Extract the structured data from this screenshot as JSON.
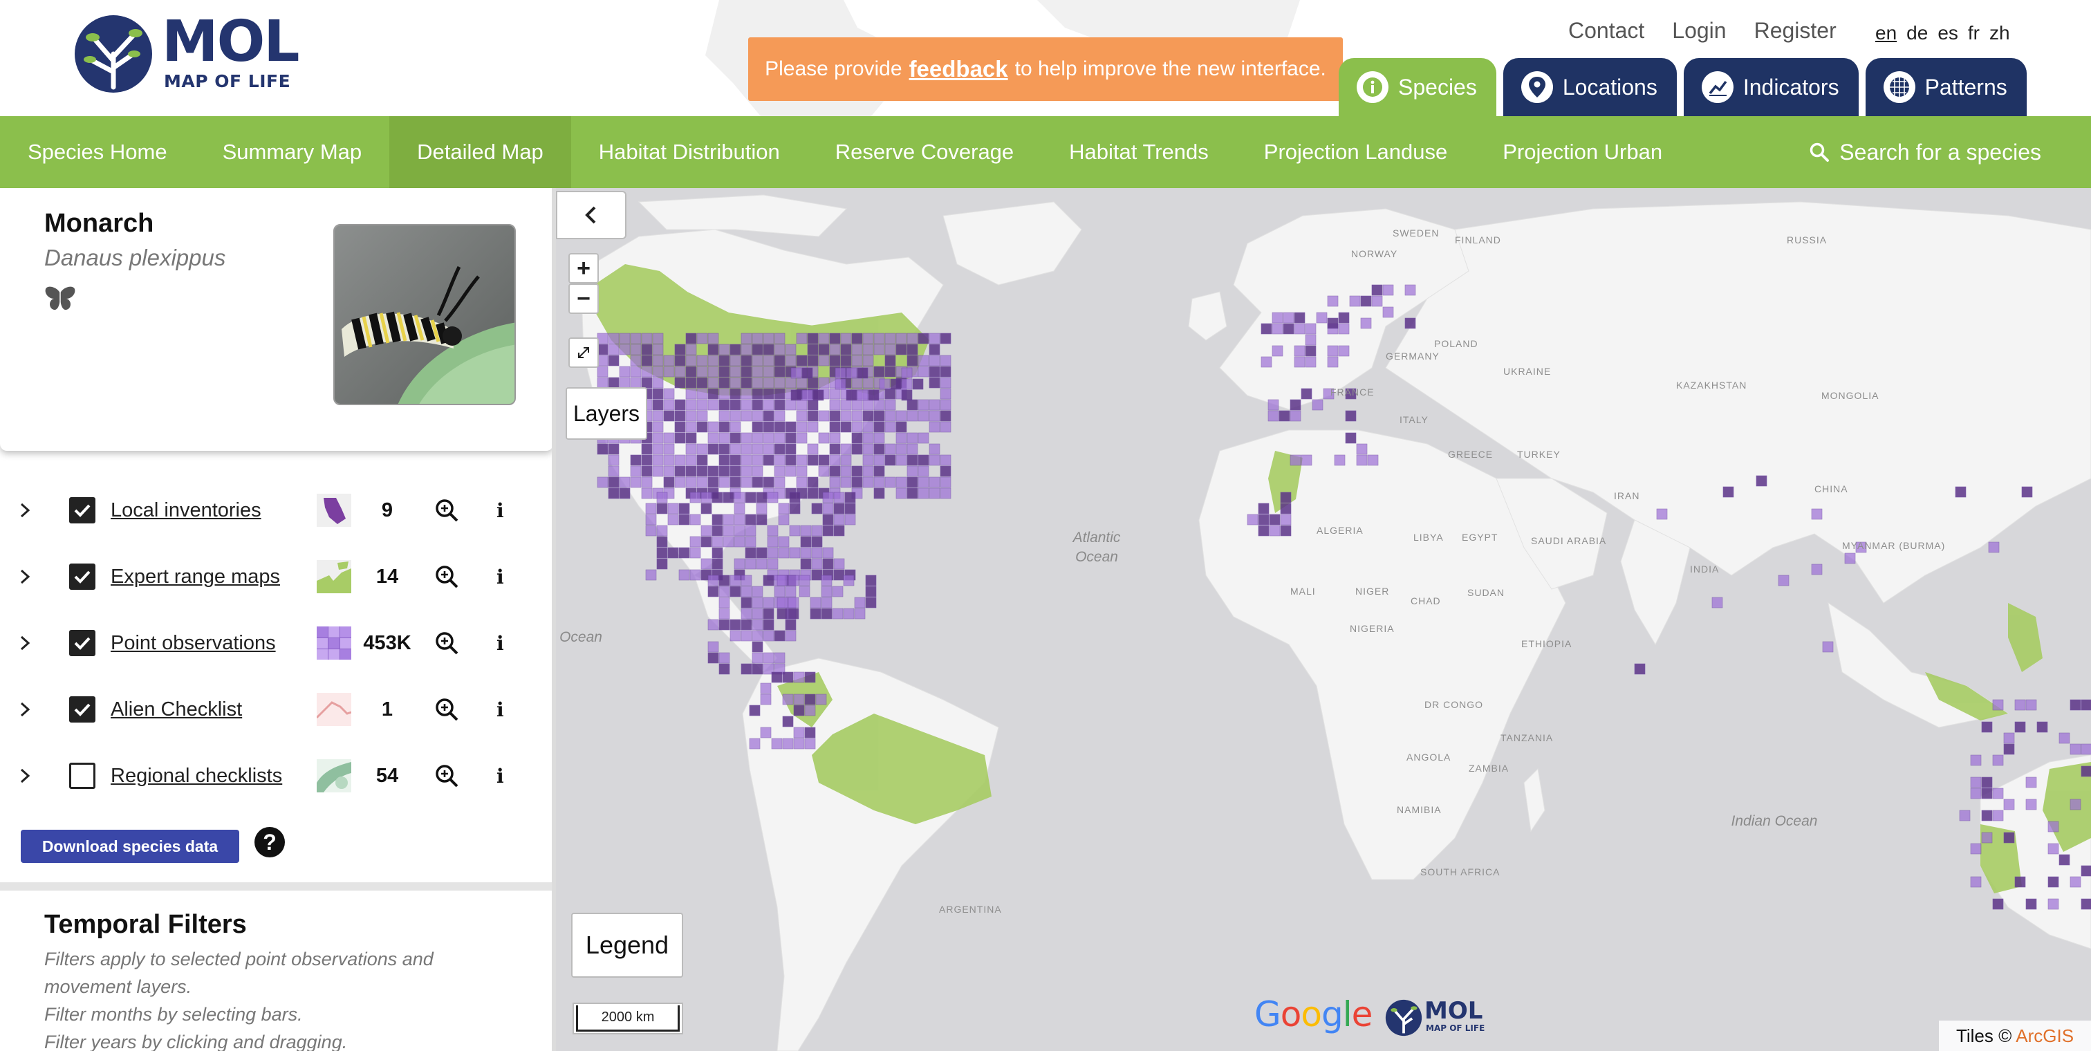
{
  "logo": {
    "title": "MOL",
    "subtitle": "MAP OF LIFE"
  },
  "feedback": {
    "prefix": "Please provide",
    "link": "feedback",
    "suffix": "to help improve the new interface."
  },
  "top_links": [
    "Contact",
    "Login",
    "Register"
  ],
  "languages": {
    "items": [
      "en",
      "de",
      "es",
      "fr",
      "zh"
    ],
    "selected": "en"
  },
  "main_tabs": [
    {
      "label": "Species",
      "icon": "info-icon",
      "active": true
    },
    {
      "label": "Locations",
      "icon": "location-pin-icon",
      "active": false
    },
    {
      "label": "Indicators",
      "icon": "trend-chart-icon",
      "active": false
    },
    {
      "label": "Patterns",
      "icon": "grid-globe-icon",
      "active": false
    }
  ],
  "nav": {
    "items": [
      "Species Home",
      "Summary Map",
      "Detailed Map",
      "Habitat Distribution",
      "Reserve Coverage",
      "Habitat Trends",
      "Projection Landuse",
      "Projection Urban"
    ],
    "active": "Detailed Map",
    "search_label": "Search for a species"
  },
  "species": {
    "common_name": "Monarch",
    "scientific_name": "Danaus plexippus",
    "group_icon": "butterfly-icon"
  },
  "layers": [
    {
      "label": "Local inventories",
      "count": "9",
      "checked": true,
      "color": "#7b3fa0"
    },
    {
      "label": "Expert range maps",
      "count": "14",
      "checked": true,
      "color": "#a8cc66"
    },
    {
      "label": "Point observations",
      "count": "453K",
      "checked": true,
      "color": "#a77fe0"
    },
    {
      "label": "Alien Checklist",
      "count": "1",
      "checked": true,
      "color": "#e6a0a0"
    },
    {
      "label": "Regional checklists",
      "count": "54",
      "checked": false,
      "color": "#8fbf9f"
    }
  ],
  "download_button": "Download species data",
  "temporal": {
    "title": "Temporal Filters",
    "lines": [
      "Filters apply to selected point observations and",
      "movement layers.",
      "Filter months by selecting bars.",
      "Filter years by clicking and dragging."
    ]
  },
  "map": {
    "layers_button": "Layers",
    "legend_button": "Legend",
    "scale": "2000 km",
    "google": "Google",
    "attribution_prefix": "Tiles ©",
    "attribution_link": "ArcGIS",
    "mini_logo_title": "MOL",
    "mini_logo_sub": "MAP OF LIFE",
    "ocean_labels": [
      {
        "text": "Atlantic\nOcean",
        "x": 0
      },
      {
        "text": "Ocean",
        "x": 0
      },
      {
        "text": "Indian Ocean",
        "x": 0
      }
    ],
    "country_labels": [
      "SWEDEN",
      "FINLAND",
      "NORWAY",
      "RUSSIA",
      "GERMANY",
      "POLAND",
      "UKRAINE",
      "FRANCE",
      "ITALY",
      "GREECE",
      "TURKEY",
      "KAZAKHSTAN",
      "MONGOLIA",
      "CHINA",
      "IRAN",
      "ALGERIA",
      "LIBYA",
      "EGYPT",
      "SAUDI ARABIA",
      "MALI",
      "NIGER",
      "CHAD",
      "SUDAN",
      "NIGERIA",
      "ETHIOPIA",
      "DR CONGO",
      "TANZANIA",
      "ANGOLA",
      "ZAMBIA",
      "NAMIBIA",
      "SOUTH AFRICA",
      "MYANMAR (BURMA)",
      "INDIA",
      "ARGENTINA"
    ],
    "colors": {
      "land": "#f4f4f4",
      "water": "#d7d7da",
      "range": "#a8cc66",
      "points": "#9c6fd6",
      "points_dark": "#5c3488"
    }
  },
  "colors": {
    "nav_green": "#8bbf4c",
    "tab_navy": "#1f3364",
    "feedback_orange": "#f59a57",
    "download_blue": "#3a47a8"
  }
}
